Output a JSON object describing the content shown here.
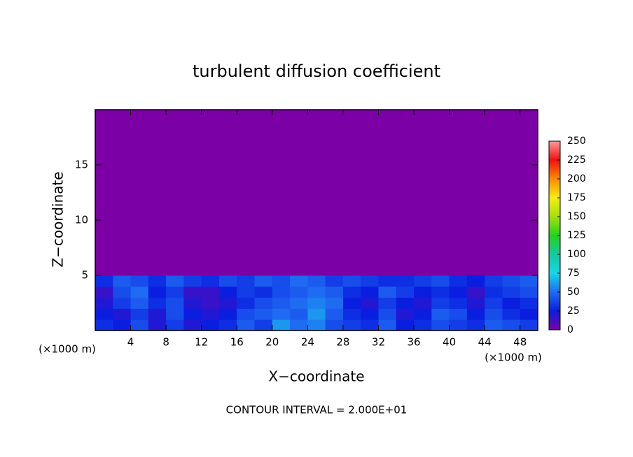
{
  "chart_data": {
    "type": "heatmap",
    "title": "turbulent diffusion coefficient",
    "xlabel": "X−coordinate",
    "ylabel": "Z−coordinate",
    "x_unit": "(×1000 m)",
    "x_unit_right": "(×1000 m)",
    "footnote": "CONTOUR INTERVAL = 2.000E+01",
    "xlim": [
      0,
      50
    ],
    "xticks": [
      4,
      8,
      12,
      16,
      20,
      24,
      28,
      32,
      36,
      40,
      44,
      48
    ],
    "ylim": [
      0,
      20
    ],
    "yticks": [
      5,
      10,
      15
    ],
    "clim": [
      0,
      250
    ],
    "cticks": [
      0,
      25,
      50,
      75,
      100,
      125,
      150,
      175,
      200,
      225,
      250
    ],
    "colorscale": [
      [
        0,
        "#7b00a6"
      ],
      [
        25,
        "#0a1ee0"
      ],
      [
        50,
        "#1f6cf2"
      ],
      [
        75,
        "#16d7e6"
      ],
      [
        100,
        "#14c9a0"
      ],
      [
        125,
        "#22d41a"
      ],
      [
        150,
        "#a6e00a"
      ],
      [
        175,
        "#f5ee10"
      ],
      [
        200,
        "#ff8a00"
      ],
      [
        225,
        "#f01010"
      ],
      [
        250,
        "#ff9a9a"
      ]
    ],
    "z": [
      [
        30,
        25,
        40,
        20,
        35,
        20,
        25,
        30,
        45,
        35,
        60,
        50,
        55,
        40,
        35,
        30,
        45,
        25,
        30,
        40,
        35,
        30,
        45,
        40,
        35
      ],
      [
        25,
        20,
        35,
        20,
        40,
        25,
        20,
        25,
        40,
        45,
        50,
        45,
        60,
        45,
        30,
        25,
        40,
        20,
        25,
        45,
        40,
        25,
        40,
        30,
        25
      ],
      [
        20,
        35,
        45,
        30,
        40,
        20,
        15,
        20,
        30,
        40,
        45,
        50,
        55,
        50,
        25,
        20,
        35,
        25,
        20,
        35,
        30,
        20,
        35,
        25,
        30
      ],
      [
        15,
        40,
        50,
        25,
        35,
        15,
        15,
        25,
        35,
        30,
        40,
        45,
        50,
        45,
        30,
        25,
        45,
        35,
        25,
        30,
        25,
        15,
        30,
        35,
        40
      ],
      [
        30,
        45,
        40,
        30,
        45,
        35,
        30,
        40,
        35,
        45,
        40,
        50,
        45,
        35,
        40,
        35,
        30,
        30,
        35,
        40,
        30,
        25,
        35,
        40,
        45
      ],
      [
        0,
        0,
        0,
        0,
        0,
        0,
        0,
        0,
        0,
        0,
        0,
        0,
        0,
        0,
        0,
        0,
        0,
        0,
        0,
        0,
        0,
        0,
        0,
        0,
        0
      ],
      [
        0,
        0,
        0,
        0,
        0,
        0,
        0,
        0,
        0,
        0,
        0,
        0,
        0,
        0,
        0,
        0,
        0,
        0,
        0,
        0,
        0,
        0,
        0,
        0,
        0
      ],
      [
        0,
        0,
        0,
        0,
        0,
        0,
        0,
        0,
        0,
        0,
        0,
        0,
        0,
        0,
        0,
        0,
        0,
        0,
        0,
        0,
        0,
        0,
        0,
        0,
        0
      ],
      [
        0,
        0,
        0,
        0,
        0,
        0,
        0,
        0,
        0,
        0,
        0,
        0,
        0,
        0,
        0,
        0,
        0,
        0,
        0,
        0,
        0,
        0,
        0,
        0,
        0
      ],
      [
        0,
        0,
        0,
        0,
        0,
        0,
        0,
        0,
        0,
        0,
        0,
        0,
        0,
        0,
        0,
        0,
        0,
        0,
        0,
        0,
        0,
        0,
        0,
        0,
        0
      ],
      [
        0,
        0,
        0,
        0,
        0,
        0,
        0,
        0,
        0,
        0,
        0,
        0,
        0,
        0,
        0,
        0,
        0,
        0,
        0,
        0,
        0,
        0,
        0,
        0,
        0
      ],
      [
        0,
        0,
        0,
        0,
        0,
        0,
        0,
        0,
        0,
        0,
        0,
        0,
        0,
        0,
        0,
        0,
        0,
        0,
        0,
        0,
        0,
        0,
        0,
        0,
        0
      ],
      [
        0,
        0,
        0,
        0,
        0,
        0,
        0,
        0,
        0,
        0,
        0,
        0,
        0,
        0,
        0,
        0,
        0,
        0,
        0,
        0,
        0,
        0,
        0,
        0,
        0
      ],
      [
        0,
        0,
        0,
        0,
        0,
        0,
        0,
        0,
        0,
        0,
        0,
        0,
        0,
        0,
        0,
        0,
        0,
        0,
        0,
        0,
        0,
        0,
        0,
        0,
        0
      ],
      [
        0,
        0,
        0,
        0,
        0,
        0,
        0,
        0,
        0,
        0,
        0,
        0,
        0,
        0,
        0,
        0,
        0,
        0,
        0,
        0,
        0,
        0,
        0,
        0,
        0
      ],
      [
        0,
        0,
        0,
        0,
        0,
        0,
        0,
        0,
        0,
        0,
        0,
        0,
        0,
        0,
        0,
        0,
        0,
        0,
        0,
        0,
        0,
        0,
        0,
        0,
        0
      ],
      [
        0,
        0,
        0,
        0,
        0,
        0,
        0,
        0,
        0,
        0,
        0,
        0,
        0,
        0,
        0,
        0,
        0,
        0,
        0,
        0,
        0,
        0,
        0,
        0,
        0
      ],
      [
        0,
        0,
        0,
        0,
        0,
        0,
        0,
        0,
        0,
        0,
        0,
        0,
        0,
        0,
        0,
        0,
        0,
        0,
        0,
        0,
        0,
        0,
        0,
        0,
        0
      ],
      [
        0,
        0,
        0,
        0,
        0,
        0,
        0,
        0,
        0,
        0,
        0,
        0,
        0,
        0,
        0,
        0,
        0,
        0,
        0,
        0,
        0,
        0,
        0,
        0,
        0
      ],
      [
        0,
        0,
        0,
        0,
        0,
        0,
        0,
        0,
        0,
        0,
        0,
        0,
        0,
        0,
        0,
        0,
        0,
        0,
        0,
        0,
        0,
        0,
        0,
        0,
        0
      ]
    ]
  }
}
